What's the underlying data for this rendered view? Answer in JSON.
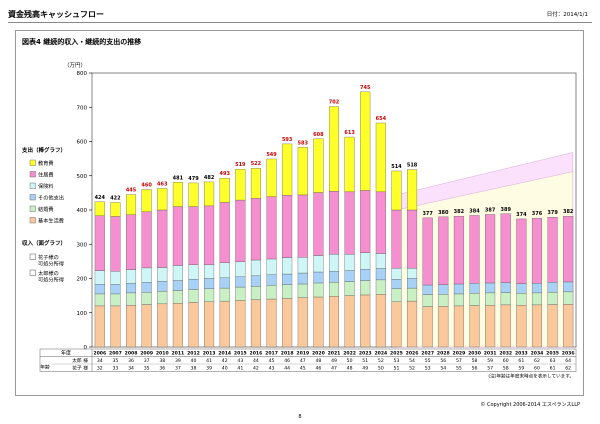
{
  "header": {
    "title": "資金残高キャッシュフロー",
    "date": "日付：2014/1/1"
  },
  "figure_title": "図表4  継続的収入・継続的支出の推移",
  "footer": {
    "copyright": "© Copyright 2006-2014 エスペランスLLP",
    "note": "(注)年齢は年度末時点を表示しています。",
    "page": "8"
  },
  "chart_data": {
    "type": "bar",
    "unit_label": "（万円）",
    "ylim": [
      0,
      800
    ],
    "yticks": [
      0,
      100,
      200,
      300,
      400,
      500,
      600,
      700,
      800
    ],
    "categories": [
      "2006",
      "2007",
      "2008",
      "2009",
      "2010",
      "2011",
      "2012",
      "2013",
      "2014",
      "2015",
      "2016",
      "2017",
      "2018",
      "2019",
      "2020",
      "2021",
      "2022",
      "2023",
      "2024",
      "2025",
      "2026",
      "2027",
      "2028",
      "2029",
      "2030",
      "2031",
      "2032",
      "2033",
      "2034",
      "2035",
      "2036"
    ],
    "totals": [
      424,
      422,
      445,
      460,
      463,
      481,
      479,
      482,
      493,
      519,
      522,
      549,
      593,
      583,
      608,
      702,
      613,
      745,
      654,
      514,
      518,
      377,
      380,
      382,
      384,
      387,
      389,
      374,
      376,
      379,
      382
    ],
    "total_label_colors": [
      "#000000",
      "#000000",
      "#cc0000",
      "#cc0000",
      "#cc0000",
      "#000000",
      "#000000",
      "#000000",
      "#cc0000",
      "#cc0000",
      "#cc0000",
      "#cc0000",
      "#cc0000",
      "#cc0000",
      "#cc0000",
      "#cc0000",
      "#cc0000",
      "#cc0000",
      "#cc0000",
      "#000000",
      "#000000",
      "#000000",
      "#000000",
      "#000000",
      "#000000",
      "#000000",
      "#000000",
      "#000000",
      "#000000",
      "#000000",
      "#000000"
    ],
    "expenditure_legend_title": "支出（棒グラフ）",
    "income_legend_title": "収入（面グラフ）",
    "series": [
      {
        "name": "基本生活費",
        "color": "#fbc89b",
        "values": [
          120,
          120,
          122,
          124,
          126,
          128,
          130,
          132,
          134,
          136,
          138,
          140,
          142,
          144,
          146,
          148,
          150,
          152,
          154,
          132,
          134,
          118,
          119,
          120,
          121,
          122,
          123,
          122,
          123,
          124,
          125
        ]
      },
      {
        "name": "結婚費",
        "color": "#c9f0c4",
        "values": [
          35,
          35,
          36,
          36,
          37,
          37,
          38,
          38,
          38,
          39,
          39,
          40,
          40,
          40,
          41,
          41,
          41,
          42,
          42,
          38,
          38,
          35,
          35,
          35,
          36,
          36,
          36,
          35,
          35,
          36,
          36
        ]
      },
      {
        "name": "その他支出",
        "color": "#a8d1f7",
        "values": [
          28,
          28,
          28,
          29,
          29,
          29,
          30,
          30,
          30,
          30,
          31,
          31,
          31,
          32,
          32,
          32,
          32,
          33,
          33,
          28,
          28,
          28,
          28,
          29,
          29,
          29,
          29,
          28,
          28,
          29,
          29
        ]
      },
      {
        "name": "保険料",
        "color": "#cff6f6",
        "values": [
          40,
          38,
          40,
          42,
          40,
          44,
          42,
          40,
          44,
          44,
          46,
          46,
          48,
          46,
          48,
          50,
          48,
          48,
          44,
          32,
          30,
          0,
          0,
          0,
          0,
          0,
          0,
          0,
          0,
          0,
          0
        ]
      },
      {
        "name": "住居費",
        "color": "#f58fd0",
        "values": [
          160,
          160,
          160,
          164,
          168,
          172,
          170,
          172,
          176,
          180,
          180,
          182,
          182,
          182,
          184,
          184,
          182,
          182,
          180,
          170,
          170,
          196,
          198,
          198,
          198,
          200,
          201,
          189,
          190,
          190,
          192
        ]
      },
      {
        "name": "教育費",
        "color": "#ffff2a",
        "values": [
          41,
          41,
          59,
          65,
          63,
          71,
          69,
          70,
          71,
          90,
          88,
          110,
          150,
          139,
          157,
          247,
          160,
          288,
          201,
          114,
          118,
          0,
          0,
          0,
          0,
          0,
          0,
          0,
          0,
          0,
          0
        ]
      }
    ],
    "income_series": [
      {
        "name": "花子様の可処分所得",
        "color": "#fbe1fb",
        "range": [
          "2025",
          "2036"
        ],
        "values": [
          444,
          568
        ]
      },
      {
        "name": "太郎様の可処分所得",
        "color": "#fefde3",
        "range": [
          "2025",
          "2036"
        ],
        "values": [
          400,
          512
        ]
      }
    ],
    "age_table": {
      "header_label": "年度",
      "rows": [
        {
          "group": "年齢",
          "name": "太郎 様",
          "values": [
            "34",
            "35",
            "36",
            "37",
            "38",
            "39",
            "40",
            "41",
            "42",
            "43",
            "44",
            "45",
            "46",
            "47",
            "48",
            "49",
            "50",
            "51",
            "52",
            "53",
            "54",
            "55",
            "56",
            "57",
            "58",
            "59",
            "60",
            "61",
            "62",
            "63",
            "64"
          ]
        },
        {
          "group": "",
          "name": "花子 様",
          "values": [
            "32",
            "33",
            "34",
            "35",
            "36",
            "37",
            "38",
            "39",
            "40",
            "41",
            "42",
            "43",
            "44",
            "45",
            "46",
            "47",
            "48",
            "49",
            "50",
            "51",
            "52",
            "53",
            "54",
            "55",
            "56",
            "57",
            "58",
            "59",
            "60",
            "61",
            "62"
          ]
        }
      ]
    }
  }
}
